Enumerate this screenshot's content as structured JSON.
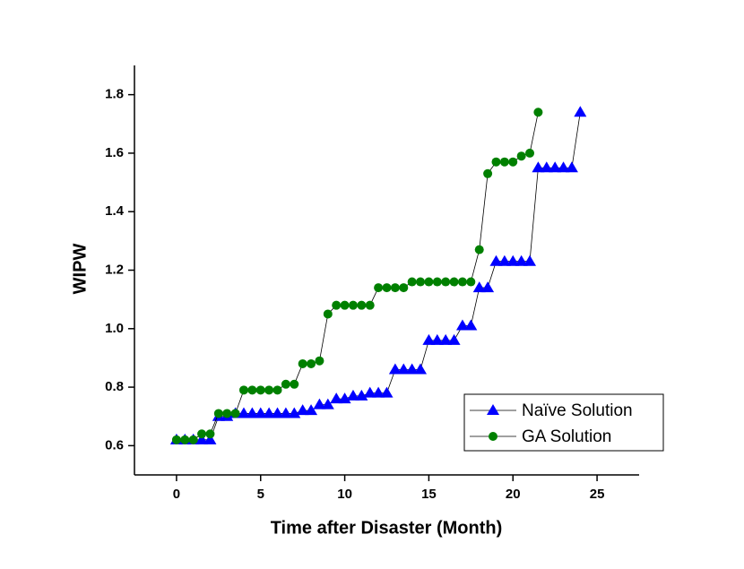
{
  "chart_data": {
    "type": "line",
    "x_label": "Time after Disaster (Month)",
    "y_label": "WIPW",
    "xlim": [
      -2.5,
      27.5
    ],
    "xticks": [
      0,
      5,
      10,
      15,
      20,
      25
    ],
    "ylim": [
      0.5,
      1.9
    ],
    "yticks": [
      0.6,
      0.8,
      {
        "value": 1,
        "label": "1.0"
      },
      1.2,
      1.4,
      1.6,
      1.8
    ],
    "legend": "lower right",
    "line_color": "#000000",
    "series": [
      {
        "name": "Naïve Solution",
        "color": "#0000ff",
        "marker": "triangle",
        "x": [
          0,
          0.5,
          1,
          1.5,
          2,
          2.5,
          3,
          3.5,
          4,
          4.5,
          5,
          5.5,
          6,
          6.5,
          7,
          7.5,
          8,
          8.5,
          9,
          9.5,
          10,
          10.5,
          11,
          11.5,
          12,
          12.5,
          13,
          13.5,
          14,
          14.5,
          15,
          15.5,
          16,
          16.5,
          17,
          17.5,
          18,
          18.5,
          19,
          19.5,
          20,
          20.5,
          21,
          21.5,
          22,
          22.5,
          23,
          23.5,
          24
        ],
        "values": [
          0.62,
          0.62,
          0.62,
          0.62,
          0.62,
          0.7,
          0.7,
          0.71,
          0.71,
          0.71,
          0.71,
          0.71,
          0.71,
          0.71,
          0.71,
          0.72,
          0.72,
          0.74,
          0.74,
          0.76,
          0.76,
          0.77,
          0.77,
          0.78,
          0.78,
          0.78,
          0.86,
          0.86,
          0.86,
          0.86,
          0.96,
          0.96,
          0.96,
          0.96,
          1.01,
          1.01,
          1.14,
          1.14,
          1.23,
          1.23,
          1.23,
          1.23,
          1.23,
          1.55,
          1.55,
          1.55,
          1.55,
          1.55,
          1.74
        ]
      },
      {
        "name": "GA Solution",
        "color": "#008000",
        "marker": "circle",
        "x": [
          0,
          0.5,
          1,
          1.5,
          2,
          2.5,
          3,
          3.5,
          4,
          4.5,
          5,
          5.5,
          6,
          6.5,
          7,
          7.5,
          8,
          8.5,
          9,
          9.5,
          10,
          10.5,
          11,
          11.5,
          12,
          12.5,
          13,
          13.5,
          14,
          14.5,
          15,
          15.5,
          16,
          16.5,
          17,
          17.5,
          18,
          18.5,
          19,
          19.5,
          20,
          20.5,
          21,
          21.5
        ],
        "values": [
          0.62,
          0.62,
          0.62,
          0.64,
          0.64,
          0.71,
          0.71,
          0.71,
          0.79,
          0.79,
          0.79,
          0.79,
          0.79,
          0.81,
          0.81,
          0.88,
          0.88,
          0.89,
          1.05,
          1.08,
          1.08,
          1.08,
          1.08,
          1.08,
          1.14,
          1.14,
          1.14,
          1.14,
          1.16,
          1.16,
          1.16,
          1.16,
          1.16,
          1.16,
          1.16,
          1.16,
          1.27,
          1.53,
          1.57,
          1.57,
          1.57,
          1.59,
          1.6,
          1.74
        ]
      }
    ]
  }
}
